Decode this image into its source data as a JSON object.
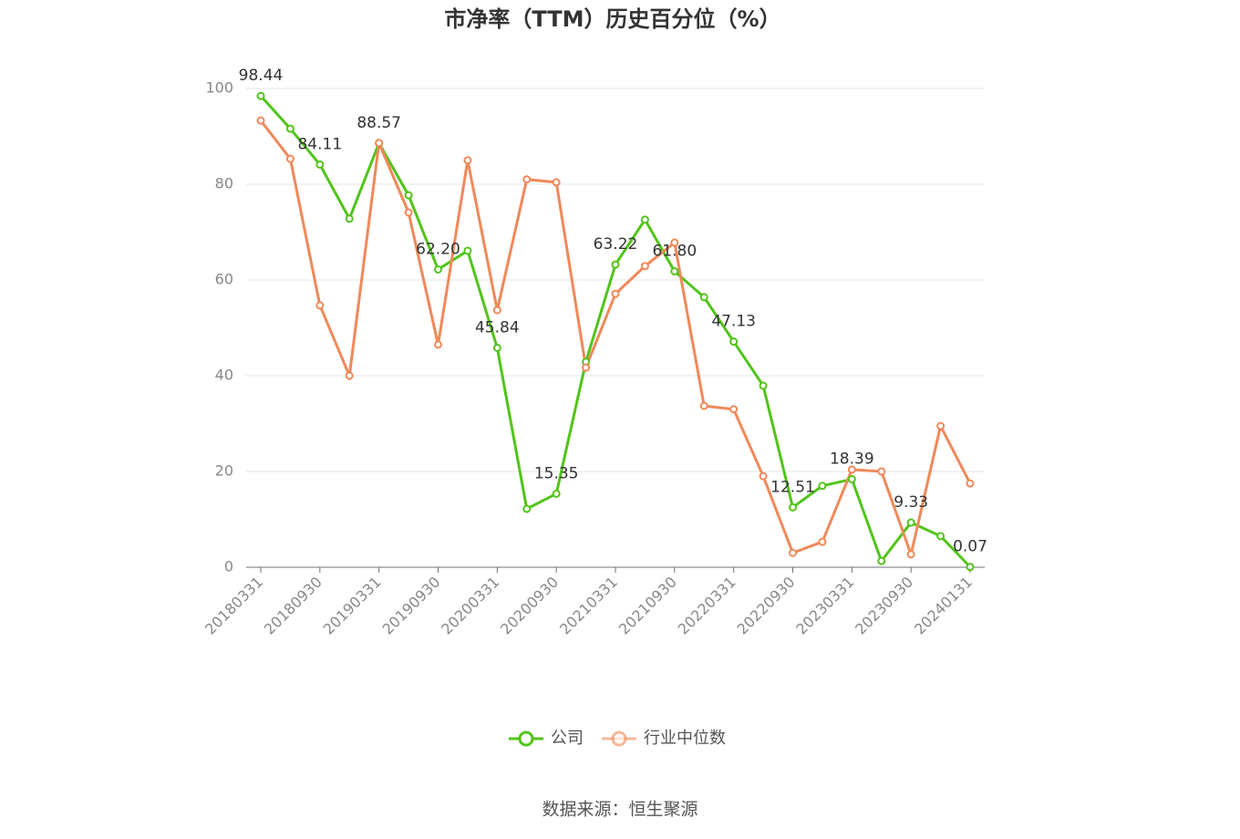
{
  "chart_data": {
    "type": "line",
    "title": "市净率（TTM）历史百分位（%）",
    "source": "数据来源：恒生聚源",
    "categories": [
      "20180331",
      null,
      "20180930",
      null,
      "20190331",
      null,
      "20190930",
      null,
      "20200331",
      null,
      "20200930",
      null,
      "20210331",
      null,
      "20210930",
      null,
      "20220331",
      null,
      "20220930",
      null,
      "20230331",
      null,
      "20230930",
      null,
      "20240131"
    ],
    "series": [
      {
        "name": "公司",
        "color": "#52c41a",
        "values": [
          98.44,
          91.6,
          84.11,
          72.8,
          88.57,
          77.7,
          62.2,
          66.1,
          45.84,
          12.2,
          15.35,
          42.9,
          63.22,
          72.6,
          61.8,
          56.4,
          47.13,
          37.9,
          12.51,
          17.0,
          18.39,
          1.3,
          9.33,
          6.5,
          0.07
        ],
        "value_labels": [
          "98.44",
          null,
          "84.11",
          null,
          "88.57",
          null,
          "62.20",
          null,
          "45.84",
          null,
          "15.35",
          null,
          "63.22",
          null,
          "61.80",
          null,
          "47.13",
          null,
          "12.51",
          null,
          "18.39",
          null,
          "9.33",
          null,
          "0.07"
        ]
      },
      {
        "name": "行业中位数",
        "color": "#f0895a",
        "values": [
          93.3,
          85.3,
          54.7,
          40.0,
          88.6,
          74.1,
          46.5,
          85.0,
          53.7,
          81.0,
          80.4,
          41.7,
          57.1,
          62.9,
          67.8,
          33.7,
          33.0,
          19.0,
          3.0,
          5.3,
          20.4,
          20.0,
          2.7,
          29.5,
          17.5
        ]
      }
    ],
    "ylim": [
      0,
      100
    ],
    "yticks": [
      0,
      20,
      40,
      60,
      80,
      100
    ],
    "grid": true,
    "legend": "bottom"
  }
}
